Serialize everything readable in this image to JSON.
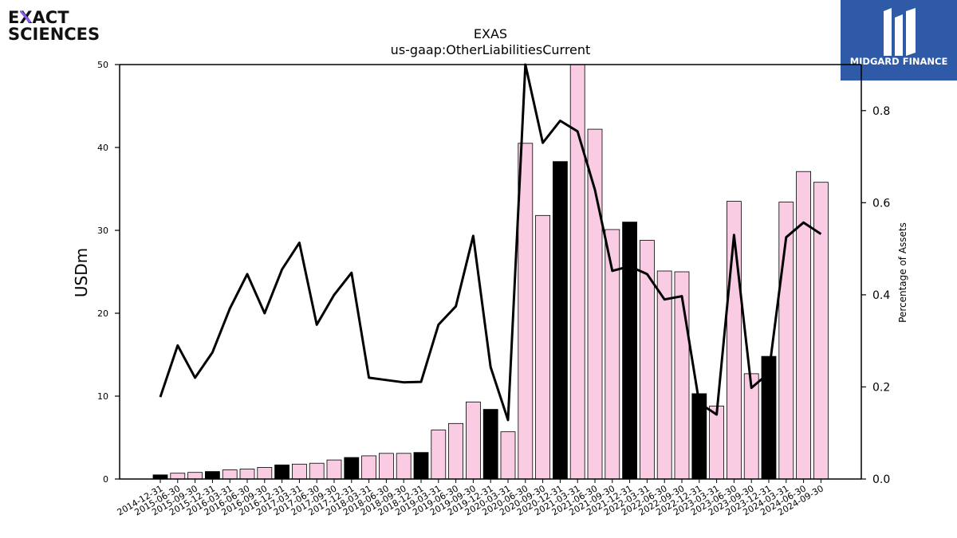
{
  "branding": {
    "company_logo_line1": "EXACT",
    "company_logo_line2": "SCIENCES",
    "publisher_logo_text": "MIDGARD FINANCE"
  },
  "colors": {
    "bar_default": "#f9cce3",
    "bar_q4": "#000000",
    "line": "#000000",
    "logo_accent": "#8b5cf6",
    "publisher_bg": "#2f5aa8"
  },
  "chart_data": {
    "type": "bar",
    "title": "EXAS",
    "subtitle": "us-gaap:OtherLiabilitiesCurrent",
    "ylabel": "USDm",
    "y2label": "Percentage of Assets",
    "ylim": [
      0,
      50
    ],
    "y2lim": [
      0,
      0.9
    ],
    "yticks": [
      "0",
      "10",
      "20",
      "30",
      "40",
      "50"
    ],
    "y2ticks": [
      "0.0",
      "0.2",
      "0.4",
      "0.6",
      "0.8"
    ],
    "categories": [
      "2014-12-31",
      "2015-06-30",
      "2015-09-30",
      "2015-12-31",
      "2016-03-31",
      "2016-06-30",
      "2016-09-30",
      "2016-12-31",
      "2017-03-31",
      "2017-06-30",
      "2017-09-30",
      "2017-12-31",
      "2018-03-31",
      "2018-06-30",
      "2018-09-30",
      "2018-12-31",
      "2019-03-31",
      "2019-06-30",
      "2019-09-30",
      "2019-12-31",
      "2020-03-31",
      "2020-06-30",
      "2020-09-30",
      "2020-12-31",
      "2021-03-31",
      "2021-06-30",
      "2021-09-30",
      "2021-12-31",
      "2022-03-31",
      "2022-06-30",
      "2022-09-30",
      "2022-12-31",
      "2023-03-31",
      "2023-06-30",
      "2023-09-30",
      "2023-12-31",
      "2024-03-31",
      "2024-06-30",
      "2024-09-30"
    ],
    "series": [
      {
        "values": [
          0.5,
          0.7,
          0.8,
          0.9,
          1.1,
          1.2,
          1.4,
          1.7,
          1.8,
          1.9,
          2.3,
          2.6,
          2.8,
          3.1,
          3.1,
          3.2,
          5.9,
          6.7,
          9.3,
          8.4,
          5.7,
          40.5,
          31.8,
          38.3,
          50.5,
          42.2,
          30.1,
          31.0,
          28.8,
          25.1,
          25.0,
          10.3,
          8.8,
          33.5,
          12.7,
          14.8,
          33.4,
          37.1,
          35.8
        ],
        "highlight_q4": [
          true,
          false,
          false,
          true,
          false,
          false,
          false,
          true,
          false,
          false,
          false,
          true,
          false,
          false,
          false,
          true,
          false,
          false,
          false,
          true,
          false,
          false,
          false,
          true,
          false,
          false,
          false,
          true,
          false,
          false,
          false,
          true,
          false,
          false,
          false,
          true,
          false,
          false,
          false
        ]
      },
      {
        "axis": "right",
        "values": [
          0.178,
          0.29,
          0.22,
          0.275,
          0.37,
          0.445,
          0.36,
          0.455,
          0.513,
          0.335,
          0.4,
          0.448,
          0.22,
          0.215,
          0.21,
          0.211,
          0.335,
          0.375,
          0.528,
          0.243,
          0.128,
          0.915,
          0.73,
          0.778,
          0.755,
          0.628,
          0.452,
          0.462,
          0.445,
          0.39,
          0.397,
          0.165,
          0.14,
          0.53,
          0.198,
          0.23,
          0.525,
          0.557,
          0.532
        ]
      }
    ]
  }
}
